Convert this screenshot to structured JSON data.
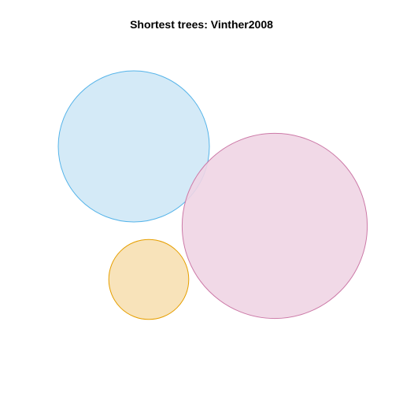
{
  "chart_data": {
    "type": "venn",
    "title": "Shortest trees: Vinther2008",
    "sets": [
      {
        "fill": "#cfe8f6",
        "stroke": "#56b4e9",
        "relative_area": 1.0
      },
      {
        "fill": "#f0d5e4",
        "stroke": "#cc79a7",
        "relative_area": 1.5
      },
      {
        "fill": "#f7e0b3",
        "stroke": "#e69f00",
        "relative_area": 0.28
      }
    ],
    "overlaps": [
      {
        "sets": [
          0,
          1
        ],
        "relative_area": 0.02
      }
    ],
    "legend": "none",
    "grid": false
  }
}
